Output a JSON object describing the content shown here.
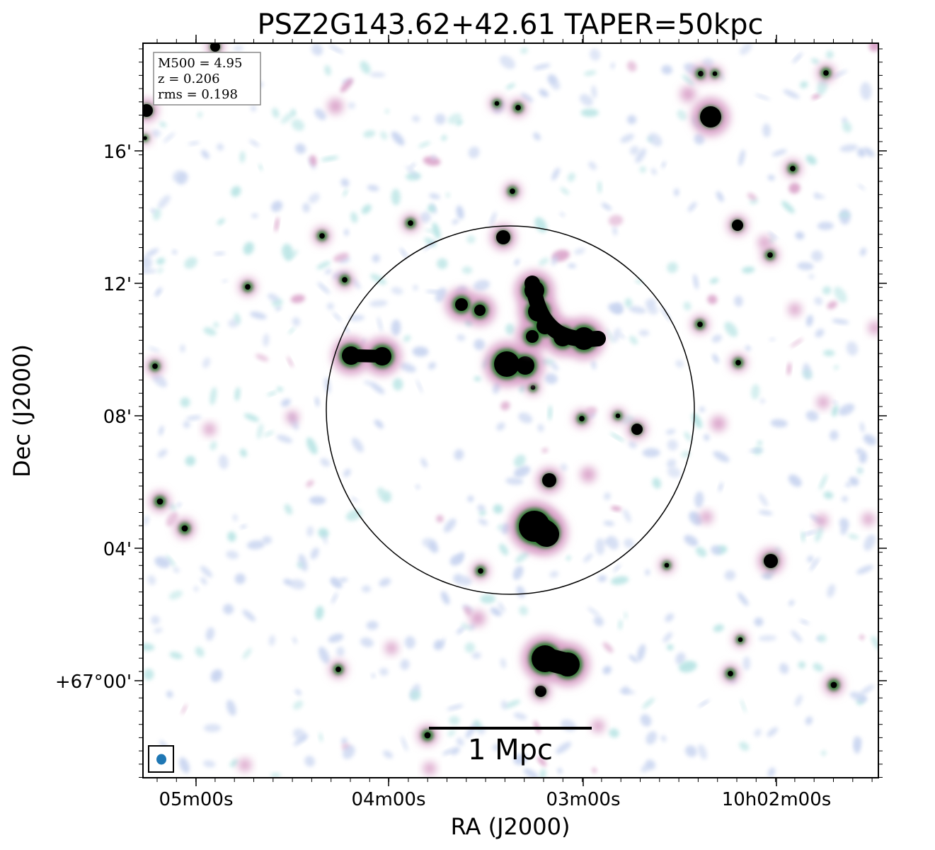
{
  "title": "PSZ2G143.62+42.61 TAPER=50kpc",
  "x_axis": {
    "label": "RA (J2000)",
    "tick_labels": [
      "05m00s",
      "04m00s",
      "03m00s",
      "10h02m00s"
    ]
  },
  "y_axis": {
    "label": "Dec (J2000)",
    "tick_labels": [
      "16'",
      "12'",
      "08'",
      "04'",
      "+67°00'"
    ]
  },
  "info_box": {
    "lines": [
      "M500 = 4.95",
      "z = 0.206",
      "rms = 0.198"
    ]
  },
  "scale_bar": {
    "label": "1 Mpc"
  },
  "colors": {
    "frame": "#000000",
    "beam": "#1f77b4",
    "low_emission": "#c8d4f0",
    "faint_emission": "#b8e4e4",
    "mid_emission": "#d9a0c8",
    "ring_emission": "#2e7d32",
    "bright_emission": "#000000"
  }
}
